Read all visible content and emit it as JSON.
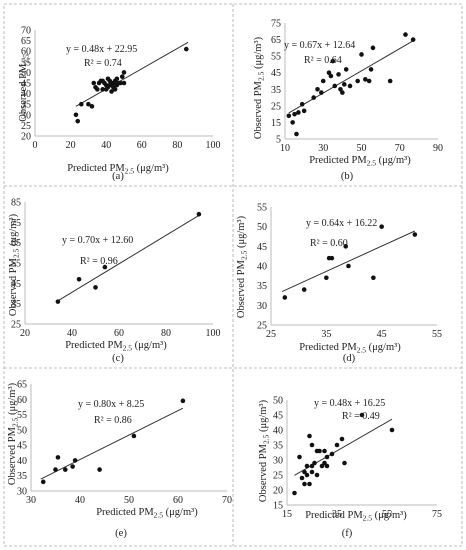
{
  "figure": {
    "panels": [
      "(a)",
      "(b)",
      "(c)",
      "(d)",
      "(e)",
      "(f)"
    ]
  },
  "chart_data": [
    {
      "type": "scatter",
      "panel": "(a)",
      "xlabel": "Predicted PM2.5 (μg/m³)",
      "ylabel": "Observed PM2.5",
      "xlim": [
        0,
        100
      ],
      "ylim": [
        20,
        70
      ],
      "xticks": [
        0,
        20,
        40,
        60,
        80,
        100
      ],
      "yticks": [
        20,
        25,
        30,
        35,
        40,
        45,
        50,
        55,
        60,
        65,
        70
      ],
      "equation": "y = 0.48x + 22.95",
      "r2": "R² = 0.74",
      "trendline": [
        [
          23,
          34.0
        ],
        [
          86,
          64.2
        ]
      ],
      "x": [
        23,
        24,
        26,
        30,
        32,
        33,
        34,
        35,
        36,
        37,
        38,
        38,
        39,
        40,
        40,
        41,
        41,
        42,
        42,
        43,
        43,
        44,
        44,
        45,
        45,
        46,
        46,
        47,
        48,
        49,
        50,
        50,
        85
      ],
      "y": [
        30,
        27,
        35,
        35,
        34,
        45,
        43,
        42,
        45,
        46,
        42,
        46,
        45,
        44,
        42,
        43,
        47,
        44,
        46,
        45,
        41,
        45,
        43,
        42,
        46,
        44,
        47,
        45,
        45,
        48,
        50,
        45,
        61
      ]
    },
    {
      "type": "scatter",
      "panel": "(b)",
      "xlabel": "Predicted PM2.5 (μg/m³)",
      "ylabel": "Observed PM2.5 (μg/m³)",
      "xlim": [
        10,
        90
      ],
      "ylim": [
        5,
        75
      ],
      "xticks": [
        10,
        30,
        50,
        70,
        90
      ],
      "yticks": [
        5,
        15,
        25,
        35,
        45,
        55,
        65,
        75
      ],
      "equation": "y = 0.67x + 12.64",
      "r2": "R² = 0.64",
      "trendline": [
        [
          12,
          20.7
        ],
        [
          78,
          64.9
        ]
      ],
      "x": [
        12,
        14,
        15,
        16,
        17,
        19,
        20,
        25,
        27,
        29,
        30,
        33,
        34,
        35,
        36,
        38,
        39,
        40,
        41,
        42,
        44,
        48,
        50,
        52,
        54,
        55,
        56,
        65,
        73,
        77
      ],
      "y": [
        19,
        15,
        20,
        8,
        21,
        26,
        22,
        30,
        35,
        33,
        40,
        45,
        43,
        52,
        37,
        44,
        35,
        33,
        38,
        47,
        37,
        40,
        56,
        41,
        40,
        47,
        60,
        40,
        68,
        65
      ]
    },
    {
      "type": "scatter",
      "panel": "(c)",
      "xlabel": "Predicted PM2.5 (μg/m³)",
      "ylabel": "Observed PM2.5 (μg/m³)",
      "xlim": [
        20,
        100
      ],
      "ylim": [
        25,
        85
      ],
      "xticks": [
        20,
        40,
        60,
        80,
        100
      ],
      "yticks": [
        25,
        35,
        45,
        55,
        65,
        75,
        85
      ],
      "equation": "y = 0.70x + 12.60",
      "r2": "R² = 0.96",
      "trendline": [
        [
          34,
          36.4
        ],
        [
          94,
          78.4
        ]
      ],
      "x": [
        34,
        43,
        50,
        54,
        94
      ],
      "y": [
        36,
        47,
        43,
        53,
        79
      ]
    },
    {
      "type": "scatter",
      "panel": "(d)",
      "xlabel": "Predicted PM2.5 (μg/m³)",
      "ylabel": "Observed PM2.5 (μg/m³)",
      "xlim": [
        25,
        55
      ],
      "ylim": [
        25,
        55
      ],
      "xticks": [
        25,
        35,
        45,
        55
      ],
      "yticks": [
        25,
        30,
        35,
        40,
        45,
        50,
        55
      ],
      "equation": "y = 0.64x + 16.22",
      "r2": "R² = 0.60",
      "trendline": [
        [
          27,
          33.5
        ],
        [
          51,
          48.9
        ]
      ],
      "x": [
        27.5,
        31,
        35,
        35.5,
        36,
        38.5,
        39,
        43.5,
        45,
        51
      ],
      "y": [
        32,
        34,
        37,
        42,
        42,
        45,
        40,
        37,
        50,
        48
      ]
    },
    {
      "type": "scatter",
      "panel": "(e)",
      "xlabel": "Predicted PM2.5 (μg/m³)",
      "ylabel": "Observed PM2.5 (μg/m³)",
      "xlim": [
        30,
        70
      ],
      "ylim": [
        30,
        65
      ],
      "xticks": [
        30,
        40,
        50,
        60,
        70
      ],
      "yticks": [
        30,
        35,
        40,
        45,
        50,
        55,
        60,
        65
      ],
      "equation": "y = 0.80x + 8.25",
      "r2": "R² = 0.86",
      "trendline": [
        [
          32,
          33.9
        ],
        [
          61,
          57.1
        ]
      ],
      "x": [
        32.5,
        35,
        35.5,
        37,
        38.5,
        39,
        44,
        51,
        61
      ],
      "y": [
        33,
        37,
        41,
        37,
        38,
        40,
        37,
        48,
        59.5
      ]
    },
    {
      "type": "scatter",
      "panel": "(f)",
      "xlabel": "Predicted PM2.5 (μg/m³)",
      "ylabel": "Observed PM2.5 (μg/m³)",
      "xlim": [
        15,
        75
      ],
      "ylim": [
        15,
        50
      ],
      "xticks": [
        15,
        35,
        55,
        75
      ],
      "yticks": [
        15,
        20,
        25,
        30,
        35,
        40,
        45,
        50
      ],
      "equation": "y = 0.48x + 16.25",
      "r2": "R² = 0.49",
      "trendline": [
        [
          18,
          24.9
        ],
        [
          57,
          43.6
        ]
      ],
      "x": [
        18,
        20,
        21,
        22,
        22,
        23,
        23,
        24,
        24,
        25,
        25,
        25,
        26,
        27,
        27,
        28,
        29,
        30,
        30,
        31,
        31,
        33,
        35,
        37,
        38,
        45,
        57
      ],
      "y": [
        19,
        31,
        24,
        22,
        26,
        28,
        25,
        22,
        38,
        26,
        35,
        28,
        29,
        33,
        25,
        33,
        28,
        29,
        33,
        31,
        28,
        32,
        35,
        37,
        29,
        45,
        40
      ]
    }
  ]
}
